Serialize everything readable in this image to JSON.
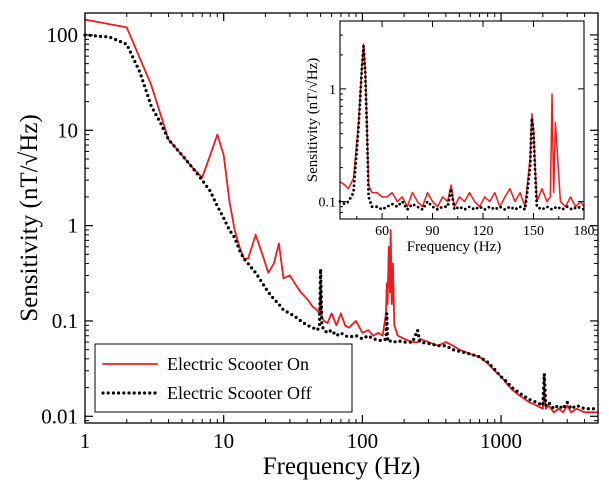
{
  "chart_data": [
    {
      "type": "line",
      "panel": "main",
      "xscale": "log",
      "yscale": "log",
      "xlim": [
        1,
        5000
      ],
      "ylim": [
        0.0085,
        170
      ],
      "xlabel": "Frequency (Hz)",
      "ylabel": "Sensitivity (nT/√Hz)",
      "xticks": [
        1,
        10,
        100,
        1000
      ],
      "xtick_labels": [
        "1",
        "10",
        "100",
        "1000"
      ],
      "yticks": [
        0.01,
        0.1,
        1,
        10,
        100
      ],
      "ytick_labels": [
        "0.01",
        "0.1",
        "1",
        "10",
        "100"
      ],
      "legend_position": "bottom-left",
      "series": [
        {
          "name": "Electric Scooter On",
          "color": "#ee1c1c",
          "style": "solid",
          "x": [
            1,
            2,
            3,
            4,
            5,
            6,
            7,
            8,
            9,
            10,
            11,
            12,
            13,
            14,
            15,
            17,
            19,
            21,
            23,
            25,
            27,
            30,
            33,
            36,
            40,
            44,
            47,
            49,
            50,
            51,
            53,
            56,
            60,
            65,
            70,
            75,
            80,
            90,
            100,
            110,
            120,
            130,
            140,
            148,
            150,
            152,
            155,
            158,
            160,
            163,
            166,
            170,
            180,
            200,
            230,
            250,
            260,
            300,
            350,
            400,
            450,
            500,
            600,
            700,
            800,
            900,
            1000,
            1100,
            1200,
            1400,
            1600,
            1800,
            2000,
            2050,
            2100,
            2200,
            2400,
            2600,
            2800,
            3000,
            3200,
            3500,
            4000,
            4500,
            5000
          ],
          "y": [
            145,
            120,
            30,
            8,
            5.5,
            4,
            3.2,
            5.5,
            9,
            5.5,
            1.8,
            0.9,
            0.6,
            0.45,
            0.45,
            0.8,
            0.5,
            0.32,
            0.4,
            0.65,
            0.28,
            0.3,
            0.24,
            0.2,
            0.17,
            0.14,
            0.13,
            0.12,
            0.25,
            0.11,
            0.1,
            0.095,
            0.12,
            0.09,
            0.12,
            0.09,
            0.085,
            0.1,
            0.075,
            0.08,
            0.07,
            0.075,
            0.07,
            0.12,
            0.25,
            0.15,
            0.6,
            0.2,
            0.9,
            0.15,
            0.4,
            0.09,
            0.07,
            0.065,
            0.06,
            0.06,
            0.065,
            0.06,
            0.055,
            0.06,
            0.055,
            0.05,
            0.045,
            0.042,
            0.036,
            0.03,
            0.026,
            0.022,
            0.019,
            0.016,
            0.014,
            0.013,
            0.012,
            0.02,
            0.012,
            0.013,
            0.011,
            0.012,
            0.011,
            0.013,
            0.011,
            0.012,
            0.011,
            0.011,
            0.011
          ]
        },
        {
          "name": "Electric Scooter Off",
          "color": "#000000",
          "style": "dotted",
          "x": [
            1,
            1.5,
            2,
            2.5,
            3,
            3.5,
            4,
            5,
            6,
            7,
            8,
            9,
            10,
            11,
            12,
            13,
            14,
            15,
            17,
            19,
            21,
            23,
            25,
            27,
            30,
            33,
            36,
            40,
            44,
            47,
            49,
            50,
            51,
            53,
            56,
            60,
            65,
            70,
            75,
            80,
            90,
            100,
            110,
            120,
            130,
            140,
            148,
            150,
            152,
            155,
            160,
            170,
            180,
            200,
            230,
            250,
            260,
            300,
            350,
            400,
            450,
            500,
            600,
            700,
            800,
            900,
            1000,
            1100,
            1200,
            1400,
            1600,
            1800,
            2000,
            2050,
            2100,
            2200,
            2400,
            2600,
            2800,
            3000,
            3200,
            3500,
            4000,
            4500,
            5000
          ],
          "y": [
            100,
            95,
            80,
            40,
            18,
            12,
            8,
            5.5,
            4,
            3,
            2.3,
            1.6,
            1.2,
            0.9,
            0.75,
            0.55,
            0.45,
            0.4,
            0.32,
            0.25,
            0.2,
            0.17,
            0.15,
            0.13,
            0.12,
            0.11,
            0.1,
            0.09,
            0.085,
            0.08,
            0.085,
            0.35,
            0.09,
            0.08,
            0.075,
            0.08,
            0.07,
            0.075,
            0.07,
            0.068,
            0.07,
            0.065,
            0.07,
            0.065,
            0.063,
            0.062,
            0.065,
            0.12,
            0.065,
            0.06,
            0.062,
            0.06,
            0.062,
            0.06,
            0.06,
            0.08,
            0.06,
            0.058,
            0.055,
            0.055,
            0.05,
            0.048,
            0.045,
            0.042,
            0.037,
            0.031,
            0.026,
            0.023,
            0.02,
            0.017,
            0.015,
            0.014,
            0.013,
            0.028,
            0.013,
            0.014,
            0.012,
            0.013,
            0.012,
            0.014,
            0.012,
            0.013,
            0.012,
            0.012,
            0.012
          ]
        }
      ]
    },
    {
      "type": "line",
      "panel": "inset",
      "xscale": "linear",
      "yscale": "log",
      "xlim": [
        35,
        180
      ],
      "ylim": [
        0.07,
        4
      ],
      "xlabel": "Frequency (Hz)",
      "ylabel": "Sensitivity (nT/√Hz)",
      "xticks": [
        60,
        90,
        120,
        150,
        180
      ],
      "xtick_labels": [
        "60",
        "90",
        "120",
        "150",
        "180"
      ],
      "yticks": [
        0.1,
        1
      ],
      "ytick_labels": [
        "0.1",
        "1"
      ],
      "series": [
        {
          "name": "Electric Scooter On",
          "color": "#ee1c1c",
          "style": "solid",
          "x": [
            35,
            38,
            40,
            43,
            46,
            48,
            49,
            50,
            51,
            52,
            54,
            57,
            60,
            63,
            66,
            69,
            72,
            75,
            78,
            81,
            84,
            87,
            90,
            93,
            96,
            99,
            101,
            103,
            106,
            109,
            112,
            115,
            118,
            121,
            124,
            127,
            130,
            133,
            136,
            139,
            142,
            145,
            148,
            149,
            150,
            151,
            152,
            155,
            158,
            160,
            161,
            162,
            163,
            166,
            169,
            172,
            175,
            178,
            180
          ],
          "y": [
            0.15,
            0.14,
            0.13,
            0.16,
            0.5,
            1.6,
            2.5,
            1.5,
            0.5,
            0.14,
            0.12,
            0.12,
            0.11,
            0.11,
            0.12,
            0.1,
            0.11,
            0.09,
            0.12,
            0.1,
            0.09,
            0.12,
            0.1,
            0.09,
            0.11,
            0.1,
            0.14,
            0.09,
            0.11,
            0.1,
            0.12,
            0.1,
            0.09,
            0.11,
            0.1,
            0.12,
            0.09,
            0.11,
            0.13,
            0.1,
            0.12,
            0.09,
            0.25,
            0.6,
            0.45,
            0.2,
            0.1,
            0.13,
            0.1,
            0.11,
            0.9,
            0.12,
            0.5,
            0.1,
            0.09,
            0.11,
            0.09,
            0.1,
            0.09
          ]
        },
        {
          "name": "Electric Scooter Off",
          "color": "#000000",
          "style": "dotted",
          "x": [
            35,
            38,
            40,
            43,
            46,
            48,
            49,
            50,
            51,
            52,
            54,
            57,
            60,
            63,
            66,
            69,
            72,
            75,
            78,
            81,
            84,
            87,
            90,
            93,
            96,
            99,
            101,
            103,
            106,
            109,
            112,
            115,
            118,
            121,
            124,
            127,
            130,
            133,
            136,
            139,
            142,
            145,
            148,
            149,
            150,
            151,
            152,
            155,
            158,
            161,
            164,
            167,
            170,
            173,
            176,
            180
          ],
          "y": [
            0.1,
            0.095,
            0.1,
            0.12,
            0.45,
            1.5,
            2.4,
            1.4,
            0.45,
            0.11,
            0.09,
            0.09,
            0.085,
            0.09,
            0.095,
            0.09,
            0.1,
            0.085,
            0.095,
            0.09,
            0.085,
            0.1,
            0.09,
            0.085,
            0.09,
            0.09,
            0.13,
            0.085,
            0.09,
            0.085,
            0.09,
            0.085,
            0.09,
            0.085,
            0.09,
            0.085,
            0.09,
            0.085,
            0.09,
            0.085,
            0.09,
            0.085,
            0.2,
            0.55,
            0.4,
            0.18,
            0.09,
            0.085,
            0.09,
            0.085,
            0.09,
            0.085,
            0.09,
            0.085,
            0.09,
            0.085
          ]
        }
      ]
    }
  ]
}
